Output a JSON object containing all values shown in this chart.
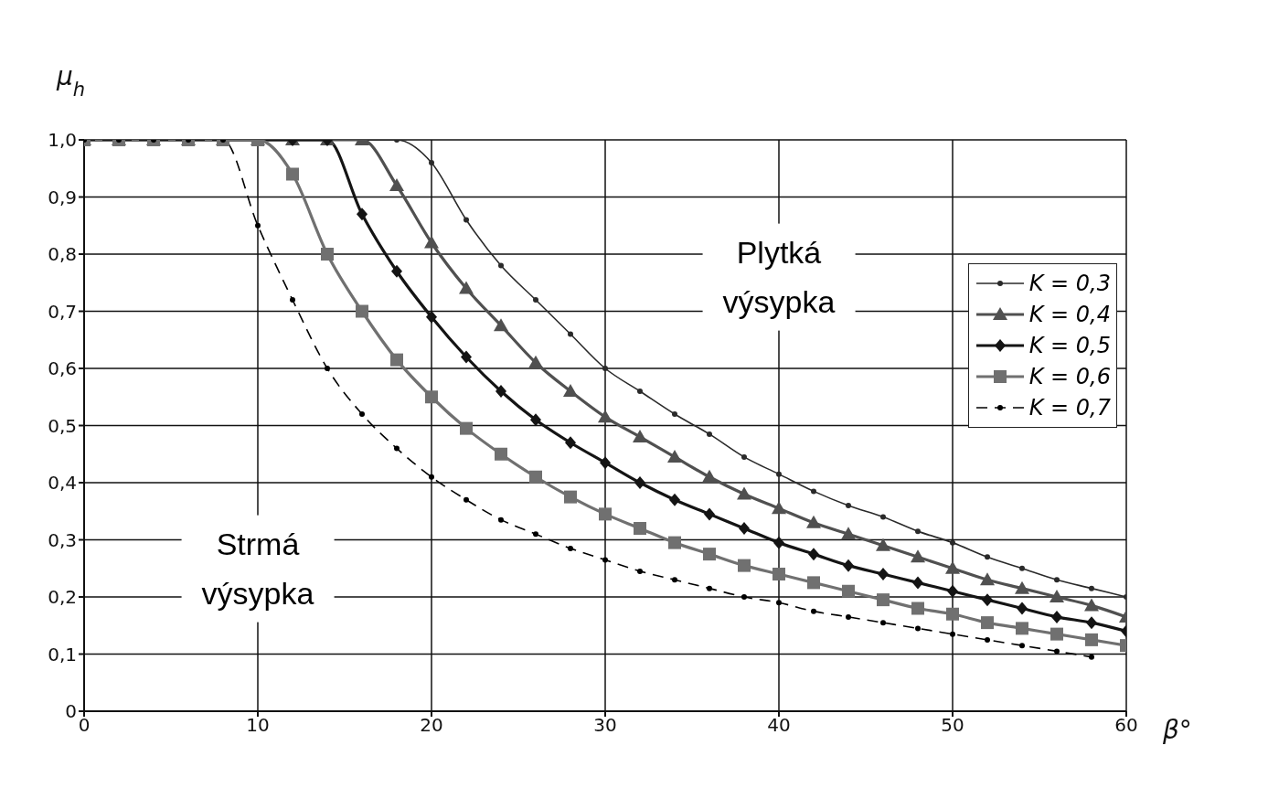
{
  "chart_data": {
    "type": "line",
    "xlabel": "β°",
    "ylabel": "μ$_{h}$",
    "x": [
      0,
      2,
      4,
      6,
      8,
      10,
      12,
      14,
      16,
      18,
      20,
      22,
      24,
      26,
      28,
      30,
      32,
      34,
      36,
      38,
      40,
      42,
      44,
      46,
      48,
      50,
      52,
      54,
      56,
      58,
      60
    ],
    "series": [
      {
        "name": "K = 0,3",
        "color": "#2a2a2a",
        "marker": "circle",
        "line_style": "solid",
        "values": [
          1.0,
          1.0,
          1.0,
          1.0,
          1.0,
          1.0,
          1.0,
          1.0,
          1.0,
          1.0,
          0.96,
          0.86,
          0.78,
          0.72,
          0.66,
          0.6,
          0.56,
          0.52,
          0.485,
          0.445,
          0.415,
          0.385,
          0.36,
          0.34,
          0.315,
          0.295,
          0.27,
          0.25,
          0.23,
          0.215,
          0.2
        ]
      },
      {
        "name": "K = 0,4",
        "color": "#505050",
        "marker": "triangle",
        "line_style": "solid",
        "values": [
          1.0,
          1.0,
          1.0,
          1.0,
          1.0,
          1.0,
          1.0,
          1.0,
          1.0,
          0.92,
          0.82,
          0.74,
          0.675,
          0.61,
          0.56,
          0.515,
          0.48,
          0.445,
          0.41,
          0.38,
          0.355,
          0.33,
          0.31,
          0.29,
          0.27,
          0.25,
          0.23,
          0.215,
          0.2,
          0.185,
          0.165
        ]
      },
      {
        "name": "K = 0,5",
        "color": "#141414",
        "marker": "diamond",
        "line_style": "solid",
        "values": [
          1.0,
          1.0,
          1.0,
          1.0,
          1.0,
          1.0,
          1.0,
          1.0,
          0.87,
          0.77,
          0.69,
          0.62,
          0.56,
          0.51,
          0.47,
          0.435,
          0.4,
          0.37,
          0.345,
          0.32,
          0.295,
          0.275,
          0.255,
          0.24,
          0.225,
          0.21,
          0.195,
          0.18,
          0.165,
          0.155,
          0.14
        ]
      },
      {
        "name": "K = 0,6",
        "color": "#707070",
        "marker": "square",
        "line_style": "solid",
        "values": [
          1.0,
          1.0,
          1.0,
          1.0,
          1.0,
          1.0,
          0.94,
          0.8,
          0.7,
          0.615,
          0.55,
          0.495,
          0.45,
          0.41,
          0.375,
          0.345,
          0.32,
          0.295,
          0.275,
          0.255,
          0.24,
          0.225,
          0.21,
          0.195,
          0.18,
          0.17,
          0.155,
          0.145,
          0.135,
          0.125,
          0.115
        ]
      },
      {
        "name": "K = 0,7",
        "color": "#000000",
        "marker": "circle",
        "line_style": "dashed",
        "values": [
          1.0,
          1.0,
          1.0,
          1.0,
          1.0,
          0.85,
          0.72,
          0.6,
          0.52,
          0.46,
          0.41,
          0.37,
          0.335,
          0.31,
          0.285,
          0.265,
          0.245,
          0.23,
          0.215,
          0.2,
          0.19,
          0.175,
          0.165,
          0.155,
          0.145,
          0.135,
          0.125,
          0.115,
          0.105,
          0.095,
          null
        ]
      }
    ],
    "xlim": [
      0,
      60
    ],
    "xticks": [
      0,
      10,
      20,
      30,
      40,
      50,
      60
    ],
    "ylim": [
      0,
      1
    ],
    "yticks": [
      0,
      {
        "value": 0.1,
        "label": "0,1"
      },
      {
        "value": 0.2,
        "label": "0,2"
      },
      {
        "value": 0.3,
        "label": "0,3"
      },
      {
        "value": 0.4,
        "label": "0,4"
      },
      {
        "value": 0.5,
        "label": "0,5"
      },
      {
        "value": 0.6,
        "label": "0,6"
      },
      {
        "value": 0.7,
        "label": "0,7"
      },
      {
        "value": 0.8,
        "label": "0,8"
      },
      {
        "value": 0.9,
        "label": "0,9"
      },
      {
        "value": 1.0,
        "label": "1,0"
      }
    ],
    "grid": true,
    "legend": "right",
    "annotations": [
      "Plytká výsypka",
      "Strmá výsypka"
    ]
  }
}
